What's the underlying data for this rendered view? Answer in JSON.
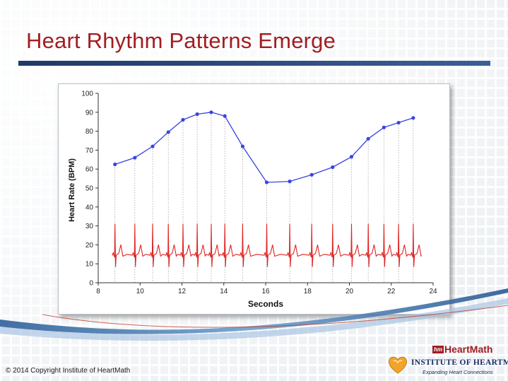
{
  "slide": {
    "title": "Heart Rhythm Patterns Emerge",
    "copyright": "© 2014 Copyright Institute of HeartMath"
  },
  "logos": {
    "heartmath_mark": "hm",
    "heartmath_name": "HeartMath",
    "institute_name": "INSTITUTE OF HEARTMATH",
    "institute_tagline": "Expanding Heart Connections"
  },
  "colors": {
    "title": "#a21d22",
    "rule": "#1f3a67",
    "heart_rate_line": "#3a44e0",
    "ecg_line": "#e02424"
  },
  "chart_data": {
    "type": "line",
    "title": "",
    "xlabel": "Seconds",
    "ylabel": "Heart Rate (BPM)",
    "xlim": [
      8,
      24
    ],
    "ylim": [
      0,
      100
    ],
    "xticks": [
      8,
      10,
      12,
      14,
      16,
      18,
      20,
      22,
      24
    ],
    "yticks": [
      0,
      10,
      20,
      30,
      40,
      50,
      60,
      70,
      80,
      90,
      100
    ],
    "grid": "vertical dotted lines at each beat",
    "series": [
      {
        "type": "line",
        "x": [
          8.8,
          9.75,
          10.6,
          11.35,
          12.05,
          12.73,
          13.4,
          14.05,
          14.9,
          16.05,
          17.15,
          18.2,
          19.2,
          20.1,
          20.9,
          21.65,
          22.35,
          23.05
        ],
        "y": [
          62.5,
          66,
          72,
          79.5,
          86,
          89,
          90,
          88,
          72,
          53,
          53.5,
          57,
          61,
          66.5,
          76,
          82,
          84.5,
          87
        ]
      },
      {
        "type": "ecg",
        "beats_x": [
          8.8,
          9.75,
          10.6,
          11.35,
          12.05,
          12.73,
          13.4,
          14.05,
          14.9,
          16.05,
          17.15,
          18.2,
          19.2,
          20.1,
          20.9,
          21.65,
          22.35,
          23.05
        ],
        "x_range": [
          8.7,
          23.4
        ]
      }
    ]
  }
}
